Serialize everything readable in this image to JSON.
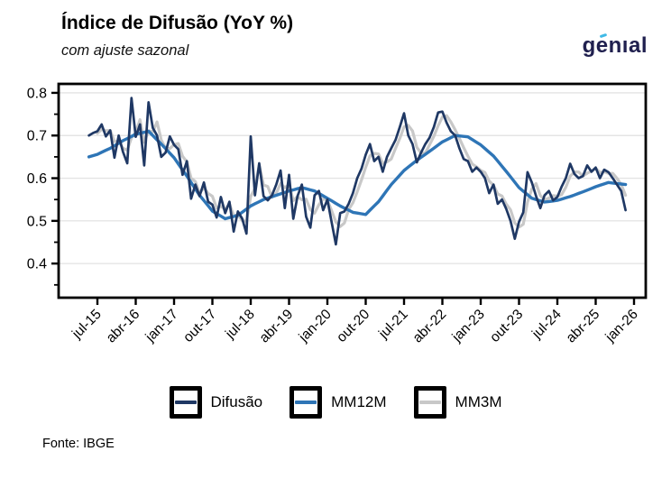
{
  "header": {
    "title": "Índice de Difusão (YoY %)",
    "subtitle": "com ajuste sazonal",
    "brand": "genıal"
  },
  "footer": {
    "source": "Fonte: IBGE"
  },
  "legend": [
    {
      "label": "Difusão",
      "color": "#1F3864"
    },
    {
      "label": "MM12M",
      "color": "#2E75B6"
    },
    {
      "label": "MM3M",
      "color": "#C8C8C8"
    }
  ],
  "chart_data": {
    "type": "line",
    "title": "Índice de Difusão (YoY %)",
    "subtitle": "com ajuste sazonal",
    "x_unit": "month",
    "frequency": "monthly",
    "start_month": "mai-15",
    "end_month": "nov-25",
    "ylim": [
      0.32,
      0.821
    ],
    "grid": "horizontal-major",
    "legend_position": "bottom",
    "yticks": [
      {
        "label": "0.8",
        "value": 0.8
      },
      {
        "label": "0.7",
        "value": 0.7
      },
      {
        "label": "0.6",
        "value": 0.6
      },
      {
        "label": "0.5",
        "value": 0.5
      },
      {
        "label": "0.4",
        "value": 0.4
      }
    ],
    "yticks_minor": [
      0.35,
      0.45,
      0.55,
      0.65,
      0.75
    ],
    "xticks": [
      {
        "label": "jul-15",
        "index": 2
      },
      {
        "label": "abr-16",
        "index": 11
      },
      {
        "label": "jan-17",
        "index": 20
      },
      {
        "label": "out-17",
        "index": 29
      },
      {
        "label": "jul-18",
        "index": 38
      },
      {
        "label": "abr-19",
        "index": 47
      },
      {
        "label": "jan-20",
        "index": 56
      },
      {
        "label": "out-20",
        "index": 65
      },
      {
        "label": "jul-21",
        "index": 74
      },
      {
        "label": "abr-22",
        "index": 83
      },
      {
        "label": "jan-23",
        "index": 92
      },
      {
        "label": "out-23",
        "index": 101
      },
      {
        "label": "jul-24",
        "index": 110
      },
      {
        "label": "abr-25",
        "index": 119
      },
      {
        "label": "jan-26",
        "index": 128
      }
    ],
    "series": [
      {
        "name": "Difusão",
        "color": "#1F3864",
        "values": [
          0.7,
          0.706,
          0.71,
          0.726,
          0.698,
          0.712,
          0.648,
          0.7,
          0.662,
          0.635,
          0.788,
          0.697,
          0.726,
          0.63,
          0.778,
          0.718,
          0.7,
          0.65,
          0.66,
          0.698,
          0.678,
          0.668,
          0.608,
          0.64,
          0.552,
          0.585,
          0.558,
          0.59,
          0.545,
          0.538,
          0.508,
          0.556,
          0.518,
          0.545,
          0.475,
          0.522,
          0.505,
          0.47,
          0.698,
          0.56,
          0.635,
          0.558,
          0.548,
          0.56,
          0.585,
          0.618,
          0.53,
          0.608,
          0.505,
          0.558,
          0.585,
          0.51,
          0.484,
          0.56,
          0.57,
          0.525,
          0.55,
          0.497,
          0.445,
          0.518,
          0.522,
          0.54,
          0.565,
          0.6,
          0.622,
          0.655,
          0.68,
          0.64,
          0.65,
          0.615,
          0.65,
          0.67,
          0.69,
          0.72,
          0.752,
          0.7,
          0.68,
          0.637,
          0.66,
          0.68,
          0.695,
          0.72,
          0.754,
          0.756,
          0.73,
          0.71,
          0.7,
          0.67,
          0.645,
          0.64,
          0.615,
          0.625,
          0.615,
          0.6,
          0.565,
          0.585,
          0.54,
          0.55,
          0.528,
          0.5,
          0.458,
          0.498,
          0.52,
          0.614,
          0.59,
          0.558,
          0.53,
          0.56,
          0.57,
          0.548,
          0.556,
          0.58,
          0.6,
          0.634,
          0.61,
          0.6,
          0.605,
          0.63,
          0.615,
          0.625,
          0.6,
          0.62,
          0.614,
          0.6,
          0.585,
          0.57,
          0.525
        ]
      },
      {
        "name": "MM12M",
        "color": "#2E75B6",
        "note": "12-month moving average, values read from chart at quarterly anchors [index, value]",
        "anchors": [
          [
            0,
            0.65
          ],
          [
            2,
            0.656
          ],
          [
            5,
            0.67
          ],
          [
            8,
            0.688
          ],
          [
            11,
            0.703
          ],
          [
            14,
            0.71
          ],
          [
            17,
            0.68
          ],
          [
            20,
            0.648
          ],
          [
            23,
            0.605
          ],
          [
            26,
            0.56
          ],
          [
            29,
            0.523
          ],
          [
            32,
            0.505
          ],
          [
            35,
            0.513
          ],
          [
            38,
            0.535
          ],
          [
            41,
            0.55
          ],
          [
            44,
            0.56
          ],
          [
            47,
            0.57
          ],
          [
            50,
            0.578
          ],
          [
            53,
            0.57
          ],
          [
            56,
            0.553
          ],
          [
            59,
            0.535
          ],
          [
            62,
            0.52
          ],
          [
            65,
            0.515
          ],
          [
            68,
            0.545
          ],
          [
            71,
            0.585
          ],
          [
            74,
            0.618
          ],
          [
            77,
            0.642
          ],
          [
            80,
            0.663
          ],
          [
            83,
            0.685
          ],
          [
            86,
            0.7
          ],
          [
            89,
            0.697
          ],
          [
            92,
            0.678
          ],
          [
            95,
            0.652
          ],
          [
            98,
            0.616
          ],
          [
            101,
            0.578
          ],
          [
            104,
            0.553
          ],
          [
            107,
            0.544
          ],
          [
            110,
            0.548
          ],
          [
            113,
            0.557
          ],
          [
            116,
            0.568
          ],
          [
            119,
            0.58
          ],
          [
            122,
            0.59
          ],
          [
            126,
            0.585
          ]
        ]
      },
      {
        "name": "MM3M",
        "color": "#C8C8C8",
        "derived": "rolling_mean_3_of_Difusão"
      }
    ]
  }
}
